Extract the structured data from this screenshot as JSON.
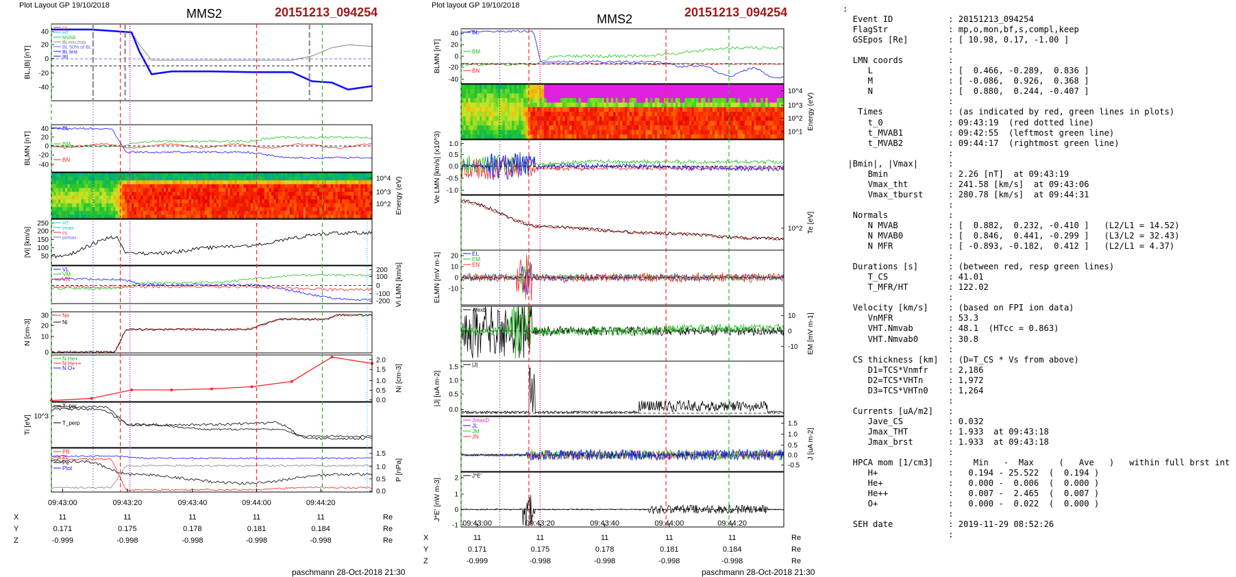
{
  "left_header": "Plot Layout GP 19/10/2018",
  "middle_header": "Plot layout GP 19/10/2018",
  "spacecraft": "MMS2",
  "event_title": "20151213_094254",
  "footer": "paschmann 28-Oct-2018 21:30",
  "time_ticks": [
    "09:43:00",
    "09:43:20",
    "09:43:40",
    "09:44:00",
    "09:44:20"
  ],
  "position_table": {
    "rows": [
      {
        "axis": "X",
        "values": [
          "11",
          "11",
          "11",
          "11",
          "11"
        ],
        "unit": "Re"
      },
      {
        "axis": "Y",
        "values": [
          "0.171",
          "0.175",
          "0.178",
          "0.181",
          "0.184"
        ],
        "unit": "Re"
      },
      {
        "axis": "Z",
        "values": [
          "-0.999",
          "-0.998",
          "-0.998",
          "-0.998",
          "-0.998"
        ],
        "unit": "Re"
      }
    ]
  },
  "colors": {
    "title_red": "#a01818",
    "cs_red": "#ff2020",
    "mvab_green": "#20c020",
    "vmax_magenta": "#d020d0",
    "grey": "#808080",
    "blue": "#1010ff"
  },
  "chart_data": [
    {
      "type": "line",
      "panel": "L1",
      "ylabel": "BL,|B| [nT]",
      "yticks": [
        "40",
        "20",
        "0",
        "-20",
        "-40"
      ],
      "legend": [
        "cs",
        "HT",
        "MVAB",
        "BLmin,max",
        "BL 50% of BL",
        "BL brst",
        "|B|"
      ],
      "series": [
        {
          "name": "|B|",
          "x": [
            0,
            10,
            20,
            22,
            25,
            30,
            40,
            50,
            60,
            65,
            70,
            74,
            80
          ],
          "values": [
            52,
            52,
            48,
            30,
            8,
            8,
            8,
            8,
            8,
            14,
            26,
            30,
            28
          ]
        },
        {
          "name": "BL brst",
          "x": [
            0,
            10,
            20,
            22,
            25,
            30,
            40,
            50,
            60,
            65,
            70,
            74,
            80
          ],
          "values": [
            52,
            52,
            48,
            20,
            -12,
            -8,
            -8,
            -9,
            -9,
            -22,
            -24,
            -34,
            -29
          ]
        }
      ]
    },
    {
      "type": "line",
      "panel": "L2",
      "ylabel": "BLMN [nT]",
      "yticks": [
        "40",
        "20",
        "0",
        "-20",
        "-40"
      ],
      "legend": [
        "BL",
        "BM",
        "BN"
      ]
    },
    {
      "type": "heatmap",
      "panel": "L3",
      "ylabel": "Energy (eV)",
      "yticks": [
        "10^4",
        "10^3",
        "10^2"
      ]
    },
    {
      "type": "line",
      "panel": "L4",
      "ylabel": "|Vi| [km/s]",
      "yticks": [
        "250",
        "200",
        "150",
        "100",
        "50"
      ],
      "legend": [
        "HT",
        "vmax",
        "cs",
        "pvmax"
      ]
    },
    {
      "type": "line",
      "panel": "L5",
      "ylabel": "Vi LMN [km/s]",
      "yticks": [
        "200",
        "100",
        "0",
        "-100",
        "-200"
      ],
      "legend": [
        "VL",
        "VM",
        "VN"
      ]
    },
    {
      "type": "line",
      "panel": "L6",
      "ylabel": "N [cm-3]",
      "yticks": [
        "30",
        "20",
        "10",
        "0"
      ],
      "legend": [
        "Ne",
        "Ni"
      ]
    },
    {
      "type": "line",
      "panel": "L7",
      "ylabel": "Ni [cm-3]",
      "yticks": [
        "2.0",
        "1.5",
        "1.0",
        "0.5",
        "0.0"
      ],
      "legend": [
        "N He+",
        "N He++",
        "N O+"
      ],
      "series": [
        {
          "name": "N He++",
          "x": [
            0,
            10,
            20,
            30,
            40,
            50,
            60,
            70,
            80
          ],
          "values": [
            0.05,
            0.15,
            0.55,
            0.55,
            0.6,
            0.7,
            0.95,
            2.1,
            1.8
          ]
        }
      ]
    },
    {
      "type": "line",
      "panel": "L8",
      "ylabel": "Ti [eV]",
      "yticks": [
        "10^3"
      ],
      "legend": [
        "T_par",
        "T_perp"
      ]
    },
    {
      "type": "line",
      "panel": "L9",
      "ylabel": "P [nPa]",
      "yticks": [
        "1.5",
        "1.0",
        "0.5",
        "0.0"
      ],
      "legend": [
        "PB",
        "Pi",
        "Pe",
        "Ptot"
      ]
    },
    {
      "type": "line",
      "panel": "M1",
      "ylabel": "BLMN [nT]",
      "yticks": [
        "40",
        "20",
        "0",
        "-20",
        "-40"
      ],
      "legend": [
        "BL",
        "BM",
        "BN"
      ]
    },
    {
      "type": "heatmap",
      "panel": "M2",
      "ylabel": "Energy (eV)",
      "yticks": [
        "10^4",
        "10^3",
        "10^2",
        "10^1"
      ]
    },
    {
      "type": "line",
      "panel": "M3",
      "ylabel": "Ve LMN [km/s] (x10^3)",
      "yticks": [
        "1.0",
        "0.5",
        "0.0",
        "-0.5",
        "-1.0"
      ]
    },
    {
      "type": "line",
      "panel": "M4",
      "ylabel": "Te [eV]",
      "yticks": [
        "10^2"
      ]
    },
    {
      "type": "line",
      "panel": "M5",
      "ylabel": "ELMN [mV m-1]",
      "yticks": [
        "20",
        "10",
        "0",
        "-10"
      ],
      "legend": [
        "EL",
        "EM",
        "EN"
      ]
    },
    {
      "type": "line",
      "panel": "M6",
      "ylabel": "EM [mV m-1]",
      "yticks": [
        "10",
        "0",
        "-10"
      ],
      "legend": [
        "-VexB"
      ]
    },
    {
      "type": "line",
      "panel": "M7",
      "ylabel": "|J| [uA m-2]",
      "yticks": [
        "1.5",
        "1.0",
        "0.5",
        "0.0"
      ],
      "legend": [
        "|J|"
      ]
    },
    {
      "type": "line",
      "panel": "M8",
      "ylabel": "J [uA m-2]",
      "yticks": [
        "1.5",
        "1.0",
        "0.5",
        "0.0",
        "-0.5"
      ],
      "legend": [
        "JmaxD",
        "JL",
        "JM",
        "JN"
      ]
    },
    {
      "type": "line",
      "panel": "M9",
      "ylabel": "J*E' [nW m-3]",
      "yticks": [
        "2",
        "1",
        "0",
        "-1"
      ],
      "legend": [
        "J*E'"
      ]
    }
  ],
  "info_lines": [
    ":",
    "  Event ID           : 20151213_094254",
    "  FlagStr            : mp,o,mon,bf,s,compl,keep",
    "  GSEpos [Re]        : [ 10.98, 0.17, -1.00 ]",
    "                     :",
    "  LMN coords         :",
    "     L               : [  0.466, -0.289,  0.836 ]",
    "     M               : [ -0.086,  0.926,  0.368 ]",
    "     N               : [  0.880,  0.244, -0.407 ]",
    "                     :",
    "   Times             : (as indicated by red, green lines in plots)",
    "     t_0             : 09:43:19  (red dotted line)",
    "     t_MVAB1         : 09:42:55  (leftmost green line)",
    "     t_MVAB2         : 09:44:17  (rightmost green line)",
    "                     :",
    " |Bmin|, |Vmax|      :",
    "     Bmin            : 2.26 [nT]  at 09:43:19",
    "     Vmax_tht        : 241.58 [km/s]  at 09:43:06",
    "     Vmax_tburst     : 280.78 [km/s]  at 09:44:31",
    "                     :",
    "  Normals            :",
    "     N MVAB          : [  0.882,  0.232, -0.410 ]   (L2/L1 = 14.52)",
    "     N MVAB0         : [  0.846,  0.441, -0.299 ]   (L3/L2 = 32.43)",
    "     N MFR           : [ -0.893, -0.182,  0.412 ]   (L2/L1 = 4.37)",
    "                     :",
    "  Durations [s]      : (between red, resp green lines)",
    "     T_CS            : 41.01",
    "     T_MFR/HT        : 122.02",
    "                     :",
    "  Velocity [km/s]    : (based on FPI ion data)",
    "     VnMFR           : 53.3",
    "     VHT.Nmvab       : 48.1  (HTcc = 0.863)",
    "     VHT.Nmvab0      : 30.8",
    "                     :",
    "  CS thickness [km]  : (D=T_CS * Vs from above)",
    "     D1=TCS*Vnmfr    : 2,186",
    "     D2=TCS*VHTn     : 1,972",
    "     D3=TCS*VHTn0    : 1,264",
    "                     :",
    "  Currents [uA/m2]   :",
    "     Jave_CS         : 0.032",
    "     Jmax_THT        : 1.933  at 09:43:18",
    "     Jmax_brst       : 1.933  at 09:43:18",
    "                     :",
    "  HPCA mom [1/cm3]   :    Min   -  Max     (   Ave   )   within full brst int",
    "     H+              :   0.194 - 25.522  (  0.194 )",
    "     He+             :   0.000 -  0.006  (  0.000 )",
    "     He++            :   0.007 -  2.465  (  0.007 )",
    "     O+              :   0.000 -  0.022  (  0.000 )",
    "                     :",
    "  SEH date           : 2019-11-29 08:52:26",
    "                     :"
  ]
}
